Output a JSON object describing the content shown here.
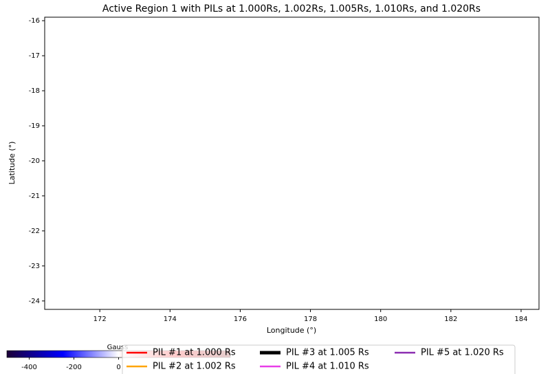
{
  "chart_data": {
    "type": "line",
    "title": "Active Region 1 with PILs at 1.000Rs, 1.002Rs, 1.005Rs, 1.010Rs, and 1.020Rs",
    "xlabel": "Longitude (°)",
    "ylabel": "Latitude (°)",
    "xlim": [
      170.43,
      184.51
    ],
    "xticks": [
      172,
      174,
      176,
      178,
      180,
      182,
      184
    ],
    "ylim": [
      -24.24,
      -15.9
    ],
    "yticks": [
      -24,
      -23,
      -22,
      -21,
      -20,
      -19,
      -18,
      -17,
      -16
    ],
    "series": [
      {
        "name": "PIL #1 at 1.000 Rs",
        "color": "#ff0000"
      },
      {
        "name": "PIL #2 at 1.002 Rs",
        "color": "#ffa500"
      },
      {
        "name": "PIL #3 at 1.005 Rs",
        "color": "#000000"
      },
      {
        "name": "PIL #4 at 1.010 Rs",
        "color": "#e83ee8"
      },
      {
        "name": "PIL #5 at 1.020 Rs",
        "color": "#8a2bb0"
      }
    ],
    "legend": "lower center",
    "colorbar": {
      "label": "Gauss",
      "clim": [
        -500,
        500
      ],
      "ticks": [
        -400,
        -200,
        0
      ],
      "colormap": [
        "#1c0036",
        "#0000ff",
        "#ffffff",
        "#ff0000",
        "#7a0000"
      ]
    }
  }
}
